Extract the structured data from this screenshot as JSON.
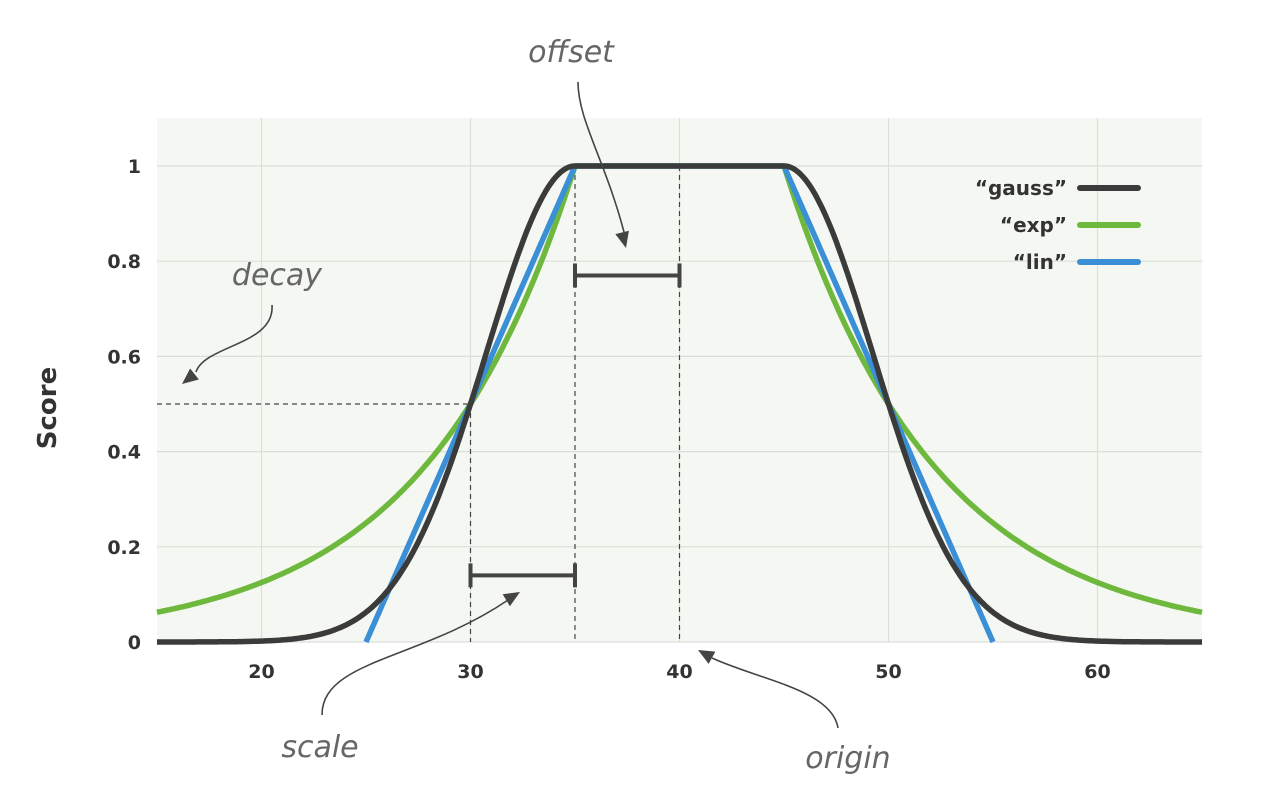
{
  "chart_data": {
    "type": "line",
    "title": "",
    "xlabel": "",
    "ylabel": "Score",
    "xlim": [
      15,
      65
    ],
    "ylim": [
      0,
      1.1
    ],
    "xticks": [
      20,
      30,
      40,
      50,
      60
    ],
    "yticks": [
      0,
      0.2,
      0.4,
      0.6,
      0.8,
      1
    ],
    "ytick_labels": [
      "0",
      "0.2",
      "0.4",
      "0.6",
      "0.8",
      "1"
    ],
    "xtick_labels": [
      "20",
      "30",
      "40",
      "50",
      "60"
    ],
    "grid": true,
    "legend_position": "top-right",
    "series": [
      {
        "name": "“gauss”",
        "color": "#3b3b3b",
        "function": "gauss",
        "origin": 40,
        "offset": 5,
        "scale": 5,
        "decay": 0.5
      },
      {
        "name": "“exp”",
        "color": "#6fb83e",
        "function": "exp",
        "origin": 40,
        "offset": 5,
        "scale": 5,
        "decay": 0.5
      },
      {
        "name": "“lin”",
        "color": "#3a8fd6",
        "function": "lin",
        "origin": 40,
        "offset": 5,
        "scale": 5,
        "decay": 0.5
      }
    ],
    "annotations": {
      "offset": "offset",
      "decay": "decay",
      "scale": "scale",
      "origin": "origin"
    }
  }
}
